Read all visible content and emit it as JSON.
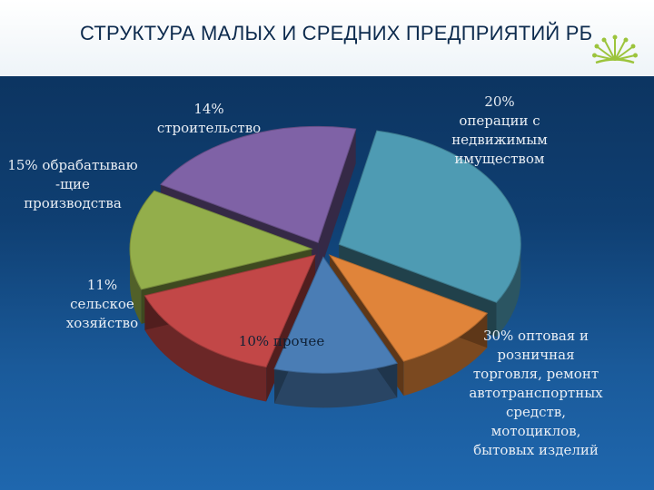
{
  "header": {
    "title": "СТРУКТУРА МАЛЫХ И СРЕДНИХ ПРЕДПРИЯТИЙ РБ"
  },
  "colors": {
    "background": "#123f70",
    "title_band": "#ffffff",
    "title_text": "#0c2a4d"
  },
  "chart_data": {
    "type": "pie",
    "title": "СТРУКТУРА МАЛЫХ И СРЕДНИХ ПРЕДПРИЯТИЙ РБ",
    "style": "3d-exploded",
    "slices": [
      {
        "value": 30,
        "label": "30% оптовая и розничная торговля, ремонт автотранспортных средств, мотоциклов, бытовых изделий",
        "color": "#4e9bb3"
      },
      {
        "value": 10,
        "label": "10% прочее",
        "color": "#e0843a"
      },
      {
        "value": 11,
        "label": "11% сельское хозяйство",
        "color": "#4a7db5"
      },
      {
        "value": 15,
        "label": "15% обрабатываю -щие производства",
        "color": "#c24747"
      },
      {
        "value": 14,
        "label": "14% строительство",
        "color": "#93ae4b"
      },
      {
        "value": 20,
        "label": "20% операции с недвижимым имуществом",
        "color": "#7f62a6"
      }
    ]
  },
  "labels": {
    "s30": [
      "30% оптовая и",
      "розничная",
      "торговля, ремонт",
      "автотранспортных",
      "средств,",
      "мотоциклов,",
      "бытовых изделий"
    ],
    "s10": [
      "10% прочее"
    ],
    "s11": [
      "11%",
      "сельское",
      "хозяйство"
    ],
    "s15": [
      "15% обрабатываю",
      "-щие",
      "производства"
    ],
    "s14": [
      "14%",
      "строительство"
    ],
    "s20": [
      "20%",
      "операции с",
      "недвижимым",
      "имуществом"
    ]
  }
}
